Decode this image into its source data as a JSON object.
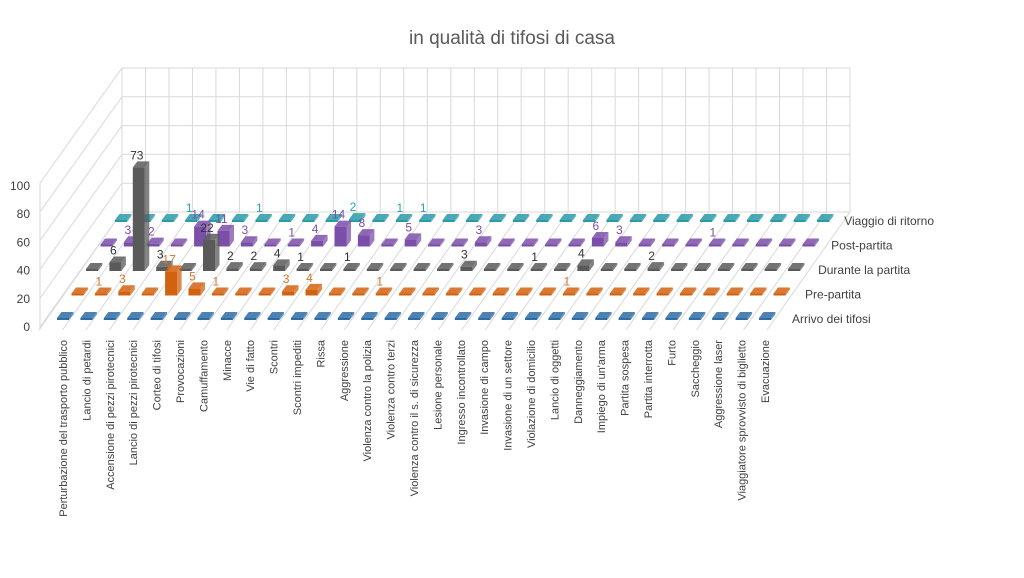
{
  "chart_data": {
    "type": "bar",
    "subtype": "3d-column",
    "title": "in qualità di tifosi di casa",
    "ylim": [
      0,
      100
    ],
    "yticks": [
      0,
      20,
      40,
      60,
      80,
      100
    ],
    "grid": true,
    "legend": "right (series axis labels)",
    "categories": [
      "Perturbazione del trasporto pubblico",
      "Lancio di petardi",
      "Accensione di pezzi pirotecnici",
      "Lancio di pezzi pirotecnici",
      "Corteo di tifosi",
      "Provocazioni",
      "Camuffamento",
      "Minacce",
      "Vie di fatto",
      "Scontri",
      "Scontri impediti",
      "Rissa",
      "Aggressione",
      "Violenza contro la polizia",
      "Violenza contro terzi",
      "Violenza contro il s. di sicurezza",
      "Lesione personale",
      "Ingresso incontrollato",
      "Invasione di campo",
      "Invasione di un settore",
      "Violazione di domicilio",
      "Lancio di oggetti",
      "Danneggiamento",
      "Impiego di un'arma",
      "Partita sospesa",
      "Partita interrotta",
      "Furto",
      "Saccheggio",
      "Aggressione laser",
      "Viaggiatore sprovvisto di biglietto",
      "Evacuazione"
    ],
    "series": [
      {
        "name": "Arrivo dei tifosi",
        "color": "#2e6ca4",
        "label_color": "#2e6ca4",
        "values": [
          0,
          0,
          0,
          0,
          0,
          0,
          0,
          0,
          0,
          0,
          0,
          0,
          0,
          0,
          0,
          0,
          0,
          0,
          0,
          0,
          0,
          0,
          0,
          0,
          0,
          0,
          0,
          0,
          0,
          0,
          0
        ]
      },
      {
        "name": "Pre-partita",
        "color": "#d2620f",
        "label_color": "#d2772f",
        "values": [
          0,
          1,
          3,
          0,
          17,
          5,
          1,
          0,
          0,
          3,
          4,
          0,
          0,
          1,
          0,
          0,
          0,
          0,
          0,
          0,
          0,
          1,
          0,
          0,
          0,
          0,
          0,
          0,
          0,
          0,
          0
        ]
      },
      {
        "name": "Durante la partita",
        "color": "#5a5a5a",
        "label_color": "#333333",
        "values": [
          0,
          6,
          73,
          3,
          0,
          22,
          2,
          2,
          4,
          1,
          0,
          1,
          0,
          0,
          0,
          0,
          3,
          0,
          0,
          1,
          0,
          4,
          0,
          0,
          2,
          0,
          0,
          0,
          0,
          0,
          0
        ]
      },
      {
        "name": "Post-partita",
        "color": "#7b4fa9",
        "label_color": "#7b4fa9",
        "values": [
          0,
          3,
          2,
          0,
          14,
          11,
          3,
          0,
          1,
          4,
          14,
          8,
          0,
          5,
          0,
          0,
          3,
          0,
          0,
          0,
          0,
          6,
          3,
          0,
          0,
          0,
          1,
          0,
          0,
          0,
          0
        ]
      },
      {
        "name": "Viaggio di ritorno",
        "color": "#2a9aa8",
        "label_color": "#2aa0b0",
        "values": [
          0,
          0,
          0,
          1,
          0,
          0,
          1,
          0,
          0,
          0,
          2,
          0,
          1,
          1,
          0,
          0,
          0,
          0,
          0,
          0,
          0,
          0,
          0,
          0,
          0,
          0,
          0,
          0,
          0,
          0,
          0
        ]
      }
    ]
  }
}
